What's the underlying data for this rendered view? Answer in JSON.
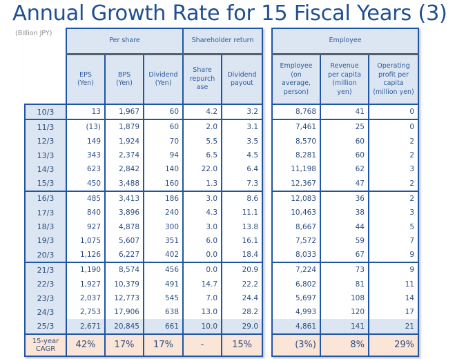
{
  "title": "Annual Growth Rate for 15 Fiscal Years (3)",
  "unit_label": "(Billion JPY)",
  "left_table": {
    "group_headers": [
      "Per share",
      "Shareholder return"
    ],
    "column_headers": [
      "EPS (Yen)",
      "BPS (Yen)",
      "Dividend (Yen)",
      "Share repurch ase",
      "Dividend payout"
    ],
    "rows": [
      {
        "year": "10/3",
        "values": [
          "13",
          "1,967",
          "60",
          "4.2",
          "3.2"
        ]
      },
      {
        "year": "11/3",
        "values": [
          "(13)",
          "1,879",
          "60",
          "2.0",
          "3.1"
        ]
      },
      {
        "year": "12/3",
        "values": [
          "149",
          "1,924",
          "70",
          "5.5",
          "3.5"
        ]
      },
      {
        "year": "13/3",
        "values": [
          "343",
          "2,374",
          "94",
          "6.5",
          "4.5"
        ]
      },
      {
        "year": "14/3",
        "values": [
          "623",
          "2,842",
          "140",
          "22.0",
          "6.4"
        ]
      },
      {
        "year": "15/3",
        "values": [
          "450",
          "3,488",
          "160",
          "1.3",
          "7.3"
        ]
      },
      {
        "year": "16/3",
        "values": [
          "485",
          "3,413",
          "186",
          "3.0",
          "8.6"
        ]
      },
      {
        "year": "17/3",
        "values": [
          "840",
          "3,896",
          "240",
          "4.3",
          "11.1"
        ]
      },
      {
        "year": "18/3",
        "values": [
          "927",
          "4,878",
          "300",
          "3.0",
          "13.8"
        ]
      },
      {
        "year": "19/3",
        "values": [
          "1,075",
          "5,607",
          "351",
          "6.0",
          "16.1"
        ]
      },
      {
        "year": "20/3",
        "values": [
          "1,126",
          "6,227",
          "402",
          "0.0",
          "18.4"
        ]
      },
      {
        "year": "21/3",
        "values": [
          "1,190",
          "8,574",
          "456",
          "0.0",
          "20.9"
        ]
      },
      {
        "year": "22/3",
        "values": [
          "1,927",
          "10,379",
          "491",
          "14.7",
          "22.2"
        ]
      },
      {
        "year": "23/3",
        "values": [
          "2,037",
          "12,773",
          "545",
          "7.0",
          "24.4"
        ]
      },
      {
        "year": "24/3",
        "values": [
          "2,753",
          "17,906",
          "638",
          "13.0",
          "28.2"
        ]
      },
      {
        "year": "25/3",
        "values": [
          "2,671",
          "20,845",
          "661",
          "10.0",
          "29.0"
        ]
      }
    ],
    "cagr": {
      "label": "15-year CAGR",
      "values": [
        "42%",
        "17%",
        "17%",
        "-",
        "15%"
      ]
    }
  },
  "right_table": {
    "group_header": "Employee",
    "column_headers": [
      "Employee (on average, person)",
      "Revenue per capita (million yen)",
      "Operating profit per capita (million yen)"
    ],
    "rows": [
      [
        "8,768",
        "41",
        "0"
      ],
      [
        "7,461",
        "25",
        "0"
      ],
      [
        "8,570",
        "60",
        "2"
      ],
      [
        "8,281",
        "60",
        "2"
      ],
      [
        "11,198",
        "62",
        "3"
      ],
      [
        "12,367",
        "47",
        "2"
      ],
      [
        "12,083",
        "36",
        "2"
      ],
      [
        "10,463",
        "38",
        "3"
      ],
      [
        "8,667",
        "44",
        "5"
      ],
      [
        "7,572",
        "59",
        "7"
      ],
      [
        "8,033",
        "67",
        "9"
      ],
      [
        "7,224",
        "73",
        "9"
      ],
      [
        "6,802",
        "81",
        "11"
      ],
      [
        "5,697",
        "108",
        "14"
      ],
      [
        "4,993",
        "120",
        "17"
      ],
      [
        "4,861",
        "141",
        "21"
      ]
    ],
    "cagr": [
      "(3%)",
      "8%",
      "29%"
    ]
  },
  "colors": {
    "header_bg": "#dce6f3",
    "border": "#1f55a3",
    "cagr_bg": "#fbe5d6",
    "title": "#1f4f8f"
  }
}
